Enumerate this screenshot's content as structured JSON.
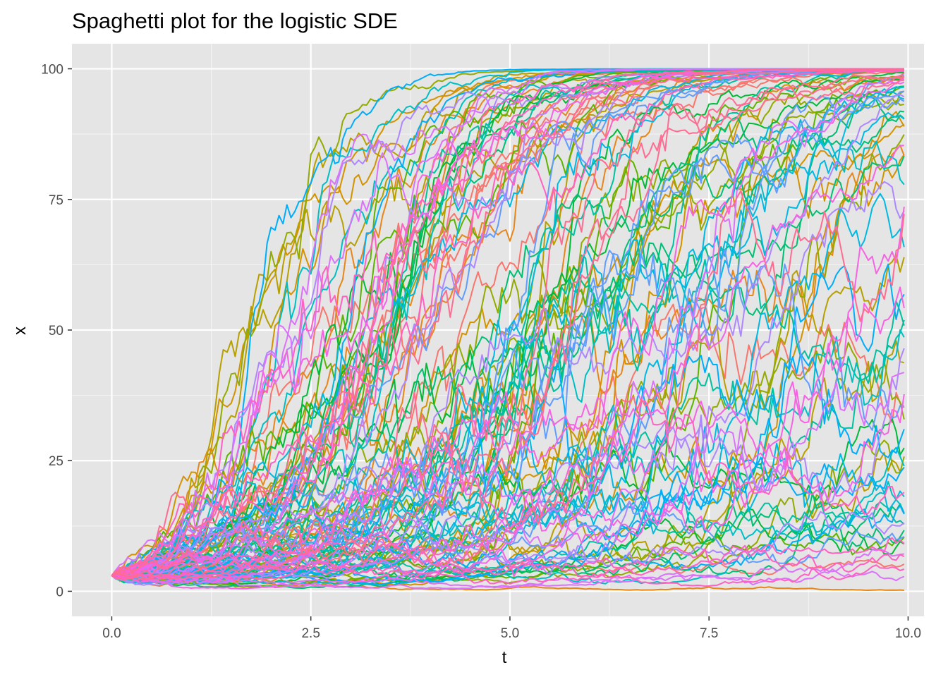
{
  "chart_data": {
    "type": "line",
    "title": "Spaghetti plot for the logistic SDE",
    "xlabel": "t",
    "ylabel": "x",
    "xlim": [
      -0.5,
      10.2
    ],
    "ylim": [
      -4.8,
      104.8
    ],
    "x_ticks": [
      0.0,
      2.5,
      5.0,
      7.5,
      10.0
    ],
    "x_tick_labels": [
      "0.0",
      "2.5",
      "5.0",
      "7.5",
      "10.0"
    ],
    "y_ticks": [
      0,
      25,
      50,
      75,
      100
    ],
    "y_tick_labels": [
      "0",
      "25",
      "50",
      "75",
      "100"
    ],
    "grid": true,
    "legend": "none",
    "panel_background": "#e5e5e5",
    "grid_color": "#ffffff",
    "model": {
      "t_start": 0,
      "t_end": 9.95,
      "t_step": 0.05,
      "x0": 3,
      "carrying_capacity": 100,
      "n_trajectories": 120
    },
    "series_colors": [
      "#f8766d",
      "#e7861b",
      "#d39200",
      "#b79f00",
      "#93aa00",
      "#5eb300",
      "#00ba38",
      "#00bf74",
      "#00c19f",
      "#00bfc4",
      "#00b9e3",
      "#00adfa",
      "#619cff",
      "#ae87ff",
      "#db72fb",
      "#f564e3",
      "#ff61c3",
      "#ff6c91"
    ]
  }
}
